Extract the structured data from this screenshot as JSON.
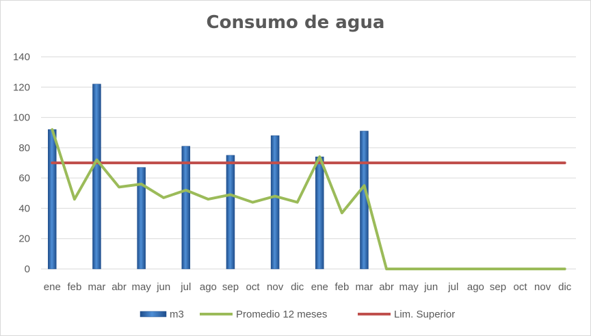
{
  "chart_data": {
    "type": "bar",
    "title": "Consumo de agua",
    "categories": [
      "ene",
      "feb",
      "mar",
      "abr",
      "may",
      "jun",
      "jul",
      "ago",
      "sep",
      "oct",
      "nov",
      "dic",
      "ene",
      "feb",
      "mar",
      "abr",
      "may",
      "jun",
      "jul",
      "ago",
      "sep",
      "oct",
      "nov",
      "dic"
    ],
    "series": [
      {
        "name": "m3",
        "type": "bar",
        "color": "#2e6db4",
        "values": [
          92,
          0,
          122,
          0,
          67,
          0,
          81,
          0,
          75,
          0,
          88,
          0,
          74,
          0,
          91,
          0,
          0,
          0,
          0,
          0,
          0,
          0,
          0,
          0
        ]
      },
      {
        "name": "Promedio 12 meses",
        "type": "line",
        "color": "#9bbb59",
        "values": [
          92,
          46,
          72,
          54,
          56,
          47,
          52,
          46,
          49,
          44,
          48,
          44,
          74,
          37,
          55,
          0,
          0,
          0,
          0,
          0,
          0,
          0,
          0,
          0
        ]
      },
      {
        "name": "Lim. Superior",
        "type": "line",
        "color": "#c0504d",
        "values": [
          70,
          70,
          70,
          70,
          70,
          70,
          70,
          70,
          70,
          70,
          70,
          70,
          70,
          70,
          70,
          70,
          70,
          70,
          70,
          70,
          70,
          70,
          70,
          70
        ]
      }
    ],
    "ylim": [
      0,
      140
    ],
    "yticks": [
      0,
      20,
      40,
      60,
      80,
      100,
      120,
      140
    ],
    "grid": true,
    "legend": "bottom"
  }
}
